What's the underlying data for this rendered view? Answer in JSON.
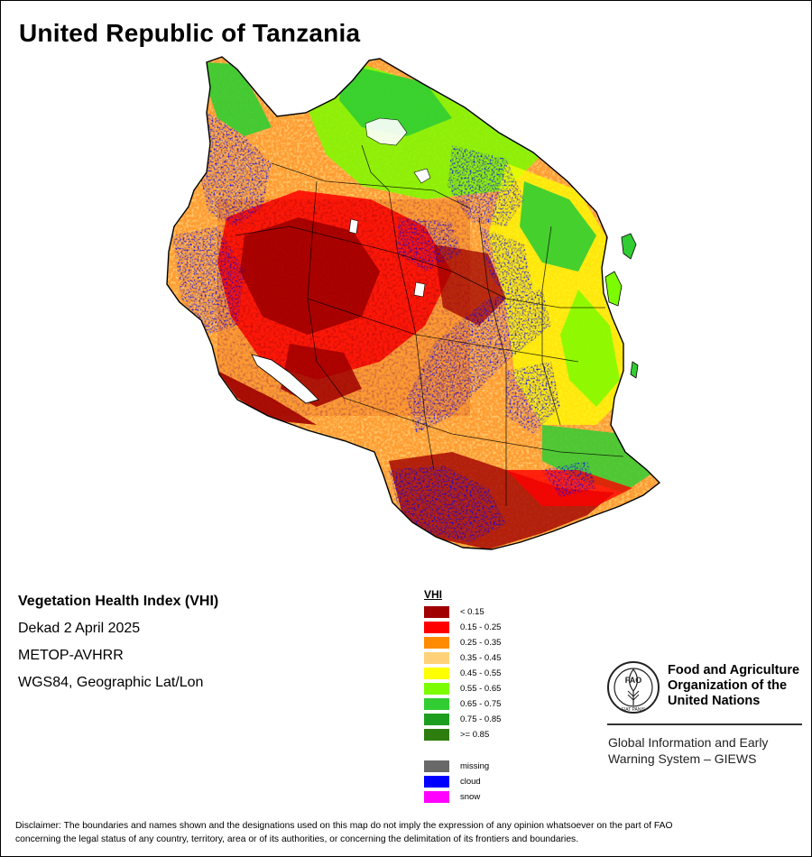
{
  "map": {
    "title": "United Republic of Tanzania"
  },
  "info": {
    "index_name": "Vegetation Health Index (VHI)",
    "dekad": "Dekad 2 April 2025",
    "sensor": "METOP-AVHRR",
    "projection": "WGS84, Geographic Lat/Lon"
  },
  "legend": {
    "title": "VHI",
    "classes": [
      {
        "label": "< 0.15",
        "color": "#a00000"
      },
      {
        "label": "0.15 - 0.25",
        "color": "#ff0000"
      },
      {
        "label": "0.25 - 0.35",
        "color": "#ff8c00"
      },
      {
        "label": "0.35 - 0.45",
        "color": "#ffd27a"
      },
      {
        "label": "0.45 - 0.55",
        "color": "#ffff00"
      },
      {
        "label": "0.55 - 0.65",
        "color": "#7cfc00"
      },
      {
        "label": "0.65 - 0.75",
        "color": "#32cd32"
      },
      {
        "label": "0.75 - 0.85",
        "color": "#1e9e1e"
      },
      {
        "label": ">= 0.85",
        "color": "#2e7d0f"
      }
    ],
    "extra": [
      {
        "label": "missing",
        "color": "#696969"
      },
      {
        "label": "cloud",
        "color": "#0000ff"
      },
      {
        "label": "snow",
        "color": "#ff00ff"
      }
    ]
  },
  "org": {
    "logo_text": "FAO",
    "logo_motto": "FIAT PANIS",
    "name_line1": "Food and Agriculture",
    "name_line2": "Organization of the",
    "name_line3": "United Nations",
    "system_line1": "Global Information and Early",
    "system_line2": "Warning System – GIEWS"
  },
  "disclaimer": {
    "line1": "Disclaimer: The boundaries and names shown and the designations used on this map do not imply the expression of any opinion whatsoever on the part of FAO",
    "line2": "concerning the legal status of any country, territory, area or of its authorities, or concerning the delimitation of its frontiers and boundaries."
  }
}
